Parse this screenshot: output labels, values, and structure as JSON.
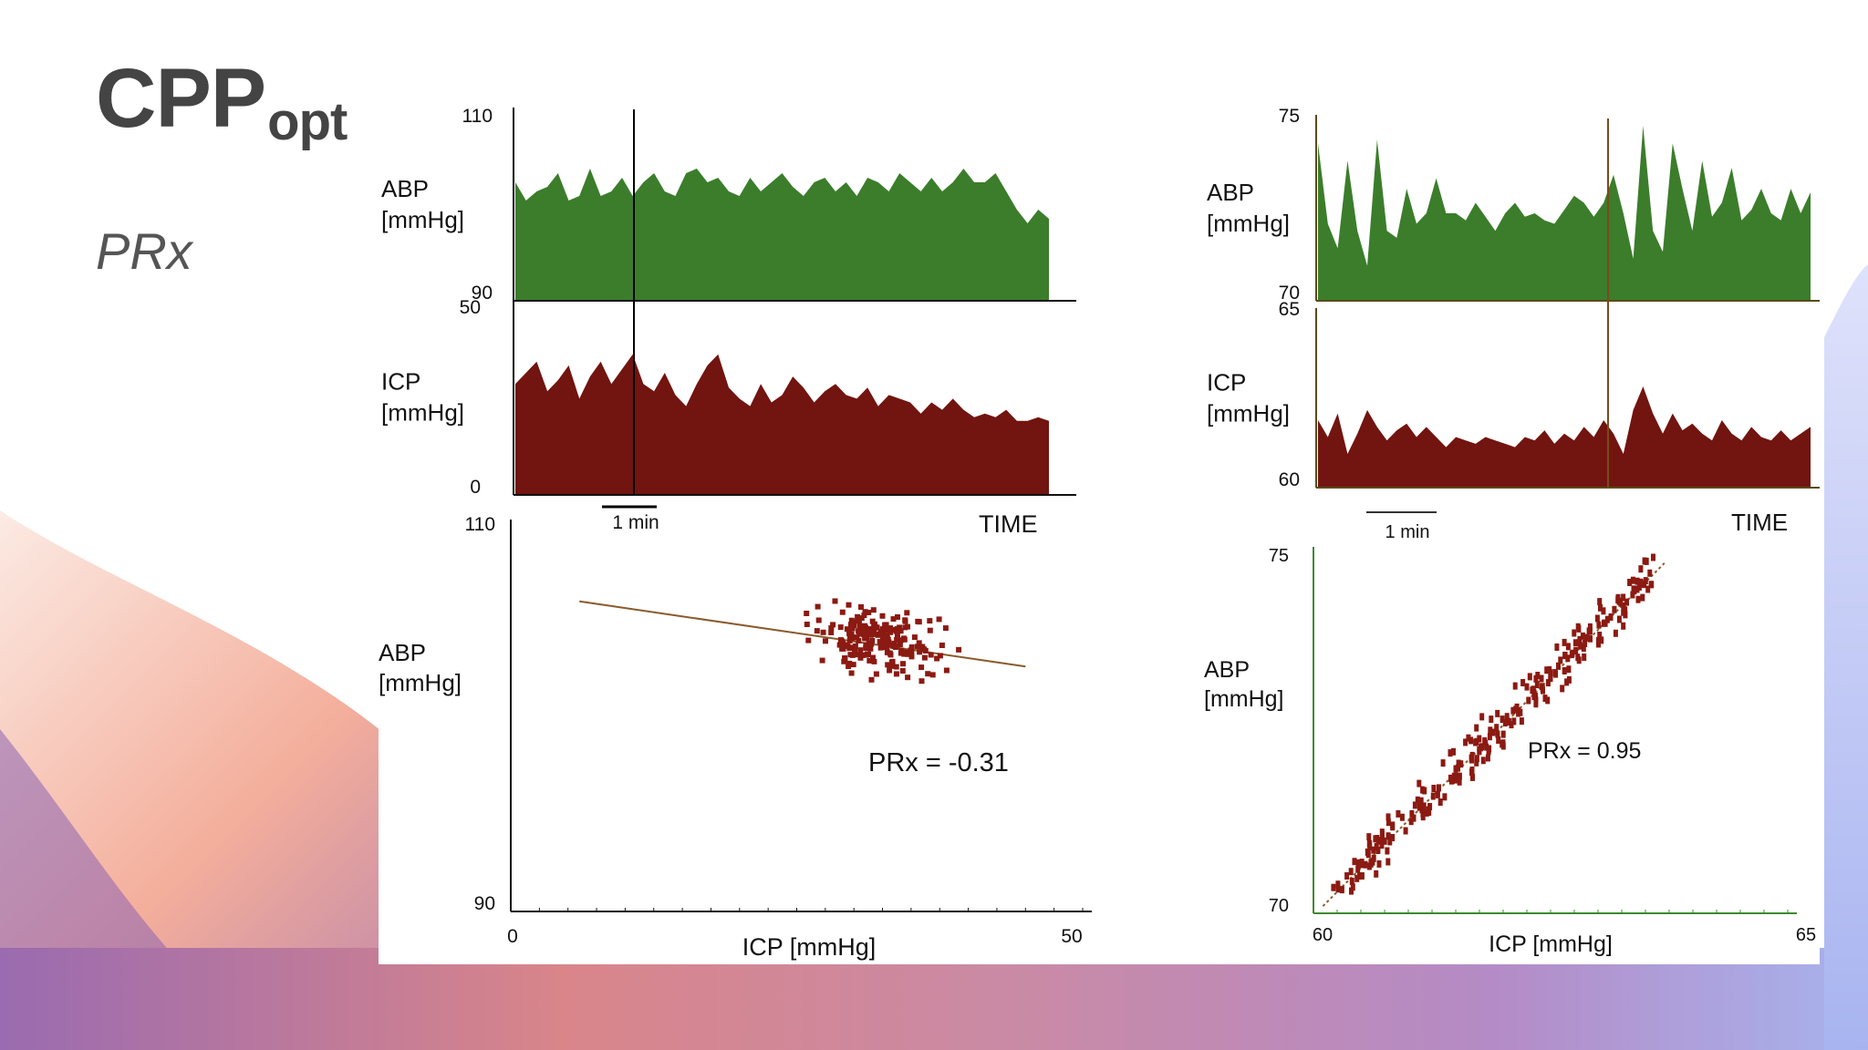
{
  "slide": {
    "title_main": "CPP",
    "title_sub": "opt",
    "subtitle": "PRx"
  },
  "colors": {
    "abp_fill": "#3b7d2b",
    "icp_fill": "#72140f",
    "scatter": "#8b1a12",
    "regression": "#8b5a2b",
    "right_axis": "#3e8a2e",
    "text": "#111111"
  },
  "chart_data": [
    {
      "id": "left-abp",
      "type": "area",
      "ylabel_line1": "ABP",
      "ylabel_line2": "[mmHg]",
      "ylim": [
        90,
        110
      ],
      "ytick_labels": [
        "110",
        "90"
      ],
      "x": [
        0,
        2,
        4,
        6,
        8,
        10,
        12,
        14,
        16,
        18,
        20,
        22,
        24,
        26,
        28,
        30,
        32,
        34,
        36,
        38,
        40,
        42,
        44,
        46,
        48,
        50,
        52,
        54,
        56,
        58,
        60,
        62,
        64,
        66,
        68,
        70,
        72,
        74,
        76,
        78,
        80,
        82,
        84,
        86,
        88,
        90,
        92,
        94,
        96,
        98,
        100
      ],
      "values": [
        103,
        101,
        102,
        102.5,
        104,
        101,
        101.5,
        104.5,
        101.5,
        102,
        103.5,
        101.5,
        103,
        104,
        102,
        101.5,
        104,
        104.5,
        103,
        103.5,
        102,
        101.5,
        103.5,
        102,
        103,
        104,
        102.5,
        101.5,
        103,
        103.5,
        102,
        103,
        101.5,
        103.5,
        103,
        102,
        104,
        103,
        102,
        103.5,
        102,
        103,
        104.5,
        103,
        103,
        104,
        102,
        100,
        98.5,
        100,
        99
      ]
    },
    {
      "id": "left-icp",
      "type": "area",
      "ylabel_line1": "ICP",
      "ylabel_line2": "[mmHg]",
      "ylim": [
        0,
        50
      ],
      "ytick_labels": [
        "50",
        "0"
      ],
      "xlabel": "TIME",
      "scale_label": "1 min",
      "x": [
        0,
        2,
        4,
        6,
        8,
        10,
        12,
        14,
        16,
        18,
        20,
        22,
        24,
        26,
        28,
        30,
        32,
        34,
        36,
        38,
        40,
        42,
        44,
        46,
        48,
        50,
        52,
        54,
        56,
        58,
        60,
        62,
        64,
        66,
        68,
        70,
        72,
        74,
        76,
        78,
        80,
        82,
        84,
        86,
        88,
        90,
        92,
        94,
        96,
        98,
        100
      ],
      "values": [
        30,
        33,
        36,
        28,
        31,
        35,
        26,
        32,
        36,
        30,
        34,
        38,
        30,
        28,
        33,
        27,
        24,
        30,
        35,
        38,
        29,
        26,
        24,
        30,
        25,
        27,
        32,
        29,
        25,
        28,
        30,
        27,
        26,
        29,
        24,
        27,
        26,
        25,
        22,
        25,
        23,
        26,
        23,
        21,
        22,
        21,
        23,
        20,
        20,
        21,
        20
      ]
    },
    {
      "id": "left-scatter",
      "type": "scatter",
      "xlabel": "ICP [mmHg]",
      "ylabel_line1": "ABP",
      "ylabel_line2": "[mmHg]",
      "xlim": [
        0,
        50
      ],
      "ylim": [
        90,
        110
      ],
      "xtick_labels": [
        "0",
        "50"
      ],
      "ytick_labels": [
        "110",
        "90"
      ],
      "annotation": "PRx = -0.31",
      "regression": {
        "x": [
          6,
          45
        ],
        "y": [
          106.2,
          102.8
        ]
      },
      "cluster": {
        "x_center": 32,
        "x_spread": 8,
        "y_center": 104.2,
        "y_spread": 1.4,
        "count": 210
      }
    },
    {
      "id": "right-abp",
      "type": "area",
      "ylabel_line1": "ABP",
      "ylabel_line2": "[mmHg]",
      "ylim": [
        70,
        75
      ],
      "ytick_labels": [
        "75",
        "70"
      ],
      "x": [
        0,
        2,
        4,
        6,
        8,
        10,
        12,
        14,
        16,
        18,
        20,
        22,
        24,
        26,
        28,
        30,
        32,
        34,
        36,
        38,
        40,
        42,
        44,
        46,
        48,
        50,
        52,
        54,
        56,
        58,
        60,
        62,
        64,
        66,
        68,
        70,
        72,
        74,
        76,
        78,
        80,
        82,
        84,
        86,
        88,
        90,
        92,
        94,
        96,
        98,
        100
      ],
      "values": [
        74.5,
        72.2,
        71.5,
        74,
        72,
        71,
        74.6,
        72,
        71.8,
        73.2,
        72.2,
        72.5,
        73.5,
        72.5,
        72.5,
        72.3,
        72.8,
        72.4,
        72,
        72.5,
        72.8,
        72.4,
        72.5,
        72.3,
        72.2,
        72.6,
        73,
        72.8,
        72.4,
        72.8,
        73.6,
        72.5,
        71.2,
        75,
        72,
        71.4,
        74.5,
        73.2,
        72,
        74,
        72.4,
        72.8,
        73.8,
        72.3,
        72.6,
        73.2,
        72.5,
        72.3,
        73.2,
        72.5,
        73.1
      ]
    },
    {
      "id": "right-icp",
      "type": "area",
      "ylabel_line1": "ICP",
      "ylabel_line2": "[mmHg]",
      "ylim": [
        60,
        65
      ],
      "ytick_labels": [
        "65",
        "60"
      ],
      "xlabel": "TIME",
      "scale_label": "1 min",
      "x": [
        0,
        2,
        4,
        6,
        8,
        10,
        12,
        14,
        16,
        18,
        20,
        22,
        24,
        26,
        28,
        30,
        32,
        34,
        36,
        38,
        40,
        42,
        44,
        46,
        48,
        50,
        52,
        54,
        56,
        58,
        60,
        62,
        64,
        66,
        68,
        70,
        72,
        74,
        76,
        78,
        80,
        82,
        84,
        86,
        88,
        90,
        92,
        94,
        96,
        98,
        100
      ],
      "values": [
        62,
        61.5,
        62.2,
        61,
        61.6,
        62.3,
        61.8,
        61.4,
        61.7,
        61.9,
        61.5,
        61.8,
        61.5,
        61.2,
        61.5,
        61.4,
        61.3,
        61.5,
        61.4,
        61.3,
        61.2,
        61.5,
        61.4,
        61.7,
        61.3,
        61.6,
        61.4,
        61.8,
        61.5,
        62,
        61.6,
        61,
        62.3,
        63,
        62.2,
        61.6,
        62.2,
        61.7,
        61.9,
        61.6,
        61.4,
        62,
        61.6,
        61.4,
        61.8,
        61.5,
        61.4,
        61.7,
        61.4,
        61.6,
        61.8
      ]
    },
    {
      "id": "right-scatter",
      "type": "scatter",
      "xlabel": "ICP [mmHg]",
      "ylabel_line1": "ABP",
      "ylabel_line2": "[mmHg]",
      "xlim": [
        60,
        65
      ],
      "ylim": [
        70,
        75
      ],
      "xtick_labels": [
        "60",
        "65"
      ],
      "ytick_labels": [
        "75",
        "70"
      ],
      "annotation": "PRx = 0.95",
      "regression": {
        "x": [
          60.1,
          63.7
        ],
        "y": [
          70.1,
          74.9
        ]
      },
      "cluster": {
        "x_from": 60.2,
        "x_to": 63.6,
        "slope": 1.33,
        "y0": 70.0,
        "x0": 60.0,
        "jitter": 0.45,
        "count": 260
      }
    }
  ]
}
